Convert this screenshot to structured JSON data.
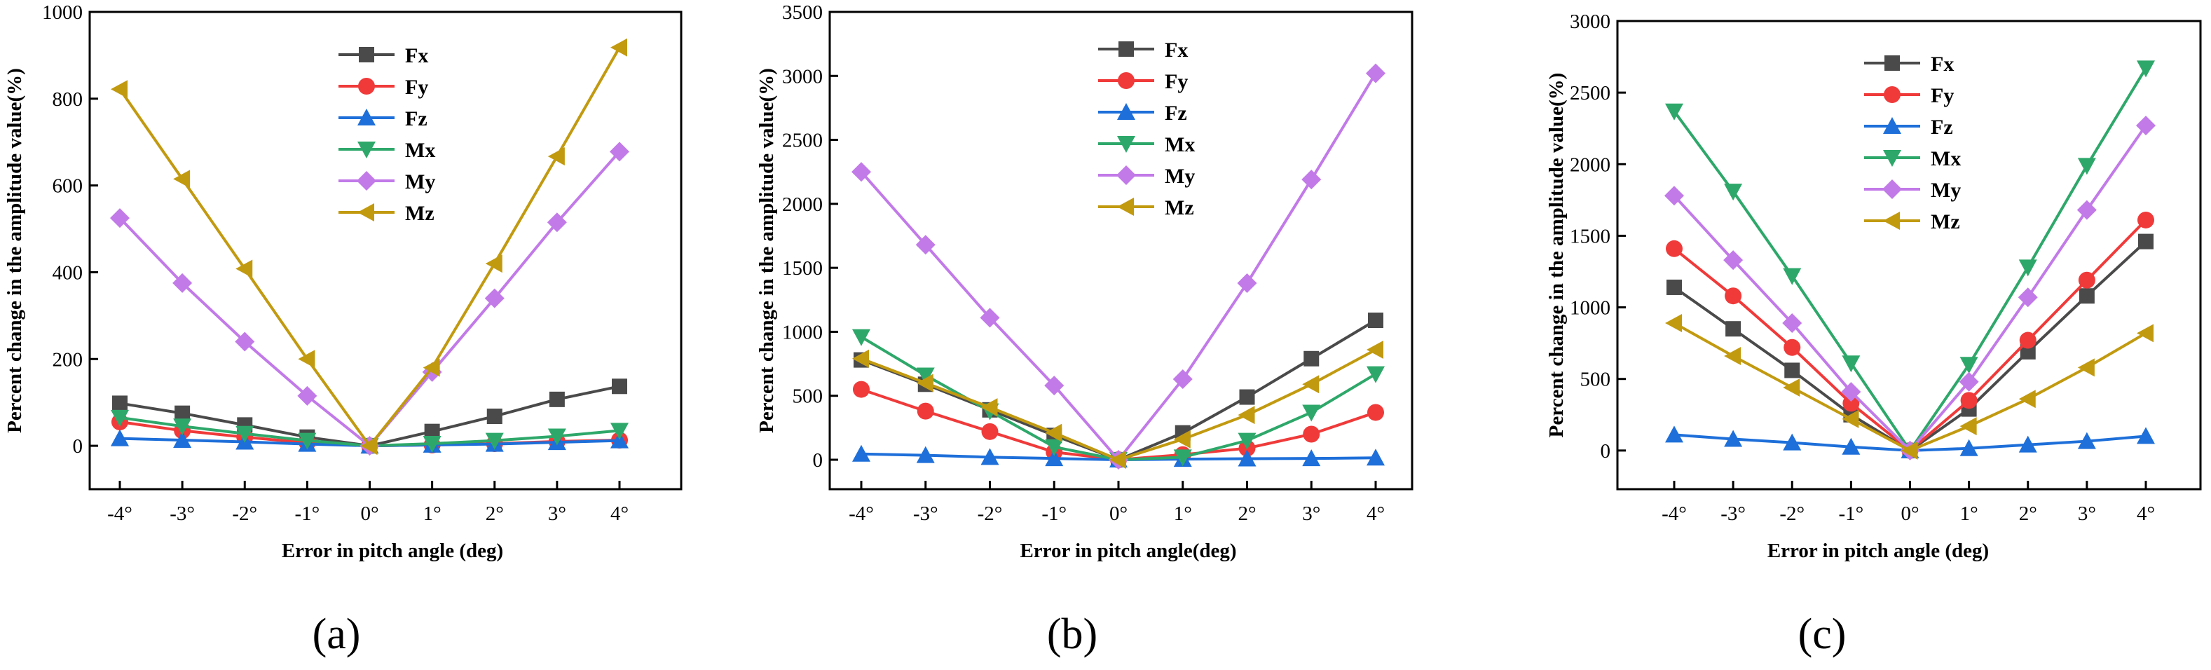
{
  "chart_data": [
    {
      "type": "line",
      "panel_label": "(a)",
      "xlabel": "Error in pitch angle (deg)",
      "ylabel": "Percent change in the amplitude value(%)",
      "categories": [
        "-4°",
        "-3°",
        "-2°",
        "-1°",
        "0°",
        "1°",
        "2°",
        "3°",
        "4°"
      ],
      "x": [
        -4,
        -3,
        -2,
        -1,
        0,
        1,
        2,
        3,
        4
      ],
      "ylim": [
        -100,
        1000
      ],
      "yticks": [
        0,
        200,
        400,
        600,
        800,
        1000
      ],
      "legend_position": "top-center",
      "series": [
        {
          "name": "Fx",
          "color": "#4a4a4a",
          "marker": "square",
          "values": [
            98,
            75,
            48,
            20,
            0,
            33,
            68,
            107,
            137
          ]
        },
        {
          "name": "Fy",
          "color": "#f03a3a",
          "marker": "circle",
          "values": [
            55,
            35,
            20,
            7,
            0,
            2,
            5,
            10,
            13
          ]
        },
        {
          "name": "Fz",
          "color": "#1e6fd9",
          "marker": "triangle-up",
          "values": [
            17,
            13,
            9,
            4,
            0,
            2,
            4,
            8,
            12
          ]
        },
        {
          "name": "Mx",
          "color": "#2ea86a",
          "marker": "triangle-down",
          "values": [
            65,
            45,
            28,
            12,
            0,
            5,
            12,
            22,
            35
          ]
        },
        {
          "name": "My",
          "color": "#c27ae8",
          "marker": "diamond",
          "values": [
            525,
            375,
            240,
            115,
            0,
            170,
            340,
            515,
            678
          ]
        },
        {
          "name": "Mz",
          "color": "#c29a10",
          "marker": "triangle-left",
          "values": [
            822,
            615,
            408,
            200,
            0,
            180,
            420,
            667,
            918
          ]
        }
      ]
    },
    {
      "type": "line",
      "panel_label": "(b)",
      "xlabel": "Error in pitch angle(deg)",
      "ylabel": "Percent change in the amplitude value(%)",
      "categories": [
        "-4°",
        "-3°",
        "-2°",
        "-1°",
        "0°",
        "1°",
        "2°",
        "3°",
        "4°"
      ],
      "x": [
        -4,
        -3,
        -2,
        -1,
        0,
        1,
        2,
        3,
        4
      ],
      "ylim": [
        -230,
        3500
      ],
      "yticks": [
        0,
        500,
        1000,
        1500,
        2000,
        2500,
        3000,
        3500
      ],
      "legend_position": "top-right",
      "series": [
        {
          "name": "Fx",
          "color": "#4a4a4a",
          "marker": "square",
          "values": [
            780,
            590,
            390,
            190,
            0,
            210,
            490,
            790,
            1090
          ]
        },
        {
          "name": "Fy",
          "color": "#f03a3a",
          "marker": "circle",
          "values": [
            550,
            380,
            220,
            60,
            0,
            40,
            90,
            200,
            370
          ]
        },
        {
          "name": "Fz",
          "color": "#1e6fd9",
          "marker": "triangle-up",
          "values": [
            45,
            35,
            20,
            10,
            0,
            5,
            8,
            10,
            15
          ]
        },
        {
          "name": "Mx",
          "color": "#2ea86a",
          "marker": "triangle-down",
          "values": [
            960,
            660,
            380,
            100,
            0,
            20,
            150,
            370,
            670
          ]
        },
        {
          "name": "My",
          "color": "#c27ae8",
          "marker": "diamond",
          "values": [
            2250,
            1680,
            1110,
            580,
            0,
            630,
            1380,
            2190,
            3020
          ]
        },
        {
          "name": "Mz",
          "color": "#c29a10",
          "marker": "triangle-left",
          "values": [
            790,
            600,
            410,
            210,
            0,
            160,
            350,
            590,
            860
          ]
        }
      ]
    },
    {
      "type": "line",
      "panel_label": "(c)",
      "xlabel": "Error in pitch angle (deg)",
      "ylabel": "Percent change in the amplitude value(%)",
      "categories": [
        "-4°",
        "-3°",
        "-2°",
        "-1°",
        "0°",
        "1°",
        "2°",
        "3°",
        "4°"
      ],
      "x": [
        -4,
        -3,
        -2,
        -1,
        0,
        1,
        2,
        3,
        4
      ],
      "ylim": [
        -270,
        3000
      ],
      "yticks": [
        0,
        500,
        1000,
        1500,
        2000,
        2500,
        3000
      ],
      "legend_position": "top-center",
      "series": [
        {
          "name": "Fx",
          "color": "#4a4a4a",
          "marker": "square",
          "values": [
            1140,
            850,
            560,
            250,
            0,
            290,
            690,
            1080,
            1460
          ]
        },
        {
          "name": "Fy",
          "color": "#f03a3a",
          "marker": "circle",
          "values": [
            1410,
            1080,
            720,
            330,
            0,
            350,
            770,
            1190,
            1610
          ]
        },
        {
          "name": "Fz",
          "color": "#1e6fd9",
          "marker": "triangle-up",
          "values": [
            110,
            80,
            55,
            25,
            0,
            15,
            40,
            65,
            100
          ]
        },
        {
          "name": "Mx",
          "color": "#2ea86a",
          "marker": "triangle-down",
          "values": [
            2370,
            1810,
            1220,
            610,
            0,
            600,
            1280,
            1990,
            2670
          ]
        },
        {
          "name": "My",
          "color": "#c27ae8",
          "marker": "diamond",
          "values": [
            1780,
            1330,
            890,
            410,
            0,
            480,
            1070,
            1680,
            2270
          ]
        },
        {
          "name": "Mz",
          "color": "#c29a10",
          "marker": "triangle-left",
          "values": [
            890,
            660,
            440,
            220,
            0,
            170,
            360,
            580,
            820
          ]
        }
      ]
    }
  ]
}
